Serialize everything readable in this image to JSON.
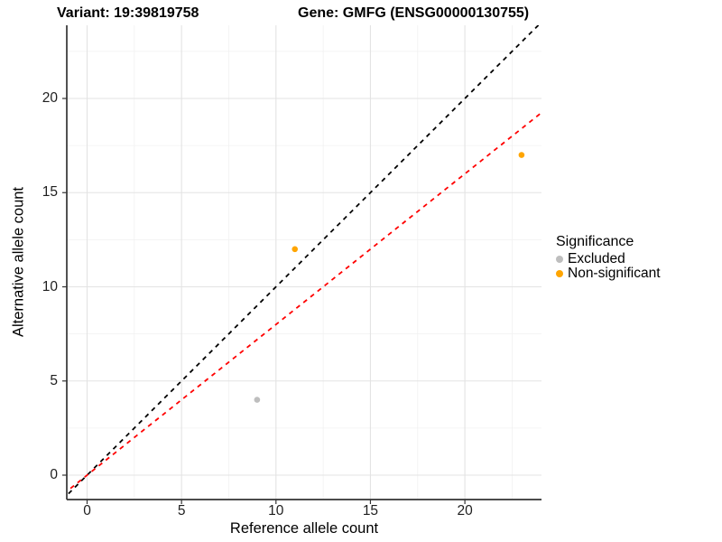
{
  "titles": {
    "variant": "Variant: 19:39819758",
    "gene": "Gene: GMFG (ENSG00000130755)"
  },
  "legend": {
    "title": "Significance",
    "items": [
      {
        "label": "Excluded",
        "color": "#BEBEBE"
      },
      {
        "label": "Non-significant",
        "color": "#FFA500"
      }
    ]
  },
  "chart_data": {
    "type": "scatter",
    "title_left": "Variant: 19:39819758",
    "title_right": "Gene: GMFG (ENSG00000130755)",
    "xlabel": "Reference allele count",
    "ylabel": "Alternative allele count",
    "xlim": [
      -1.15,
      24.15
    ],
    "ylim": [
      -1.15,
      24.15
    ],
    "x_ticks": [
      0,
      5,
      10,
      15,
      20
    ],
    "y_ticks": [
      0,
      5,
      10,
      15,
      20
    ],
    "minor_ticks": [
      2.5,
      7.5,
      12.5,
      17.5,
      22.5
    ],
    "grid": "major+minor on white background, axis lines left and bottom only",
    "legend_position": "right",
    "series": [
      {
        "name": "Excluded",
        "color": "#BEBEBE",
        "points": [
          {
            "x": 9,
            "y": 4
          }
        ]
      },
      {
        "name": "Non-significant",
        "color": "#FFA500",
        "points": [
          {
            "x": 11,
            "y": 12
          },
          {
            "x": 23,
            "y": 17
          }
        ]
      }
    ],
    "lines": [
      {
        "name": "identity-line",
        "style": "dashed",
        "color": "#000000",
        "slope": 1,
        "intercept": 0
      },
      {
        "name": "expected-ratio-line",
        "style": "dashed",
        "color": "#FF0000",
        "slope": 0.8,
        "intercept": 0
      }
    ],
    "colors": {
      "grid_major": "#e3e3e3",
      "grid_minor": "#f1f1f1",
      "axis_line": "#333333",
      "tick_mark": "#333333"
    }
  }
}
